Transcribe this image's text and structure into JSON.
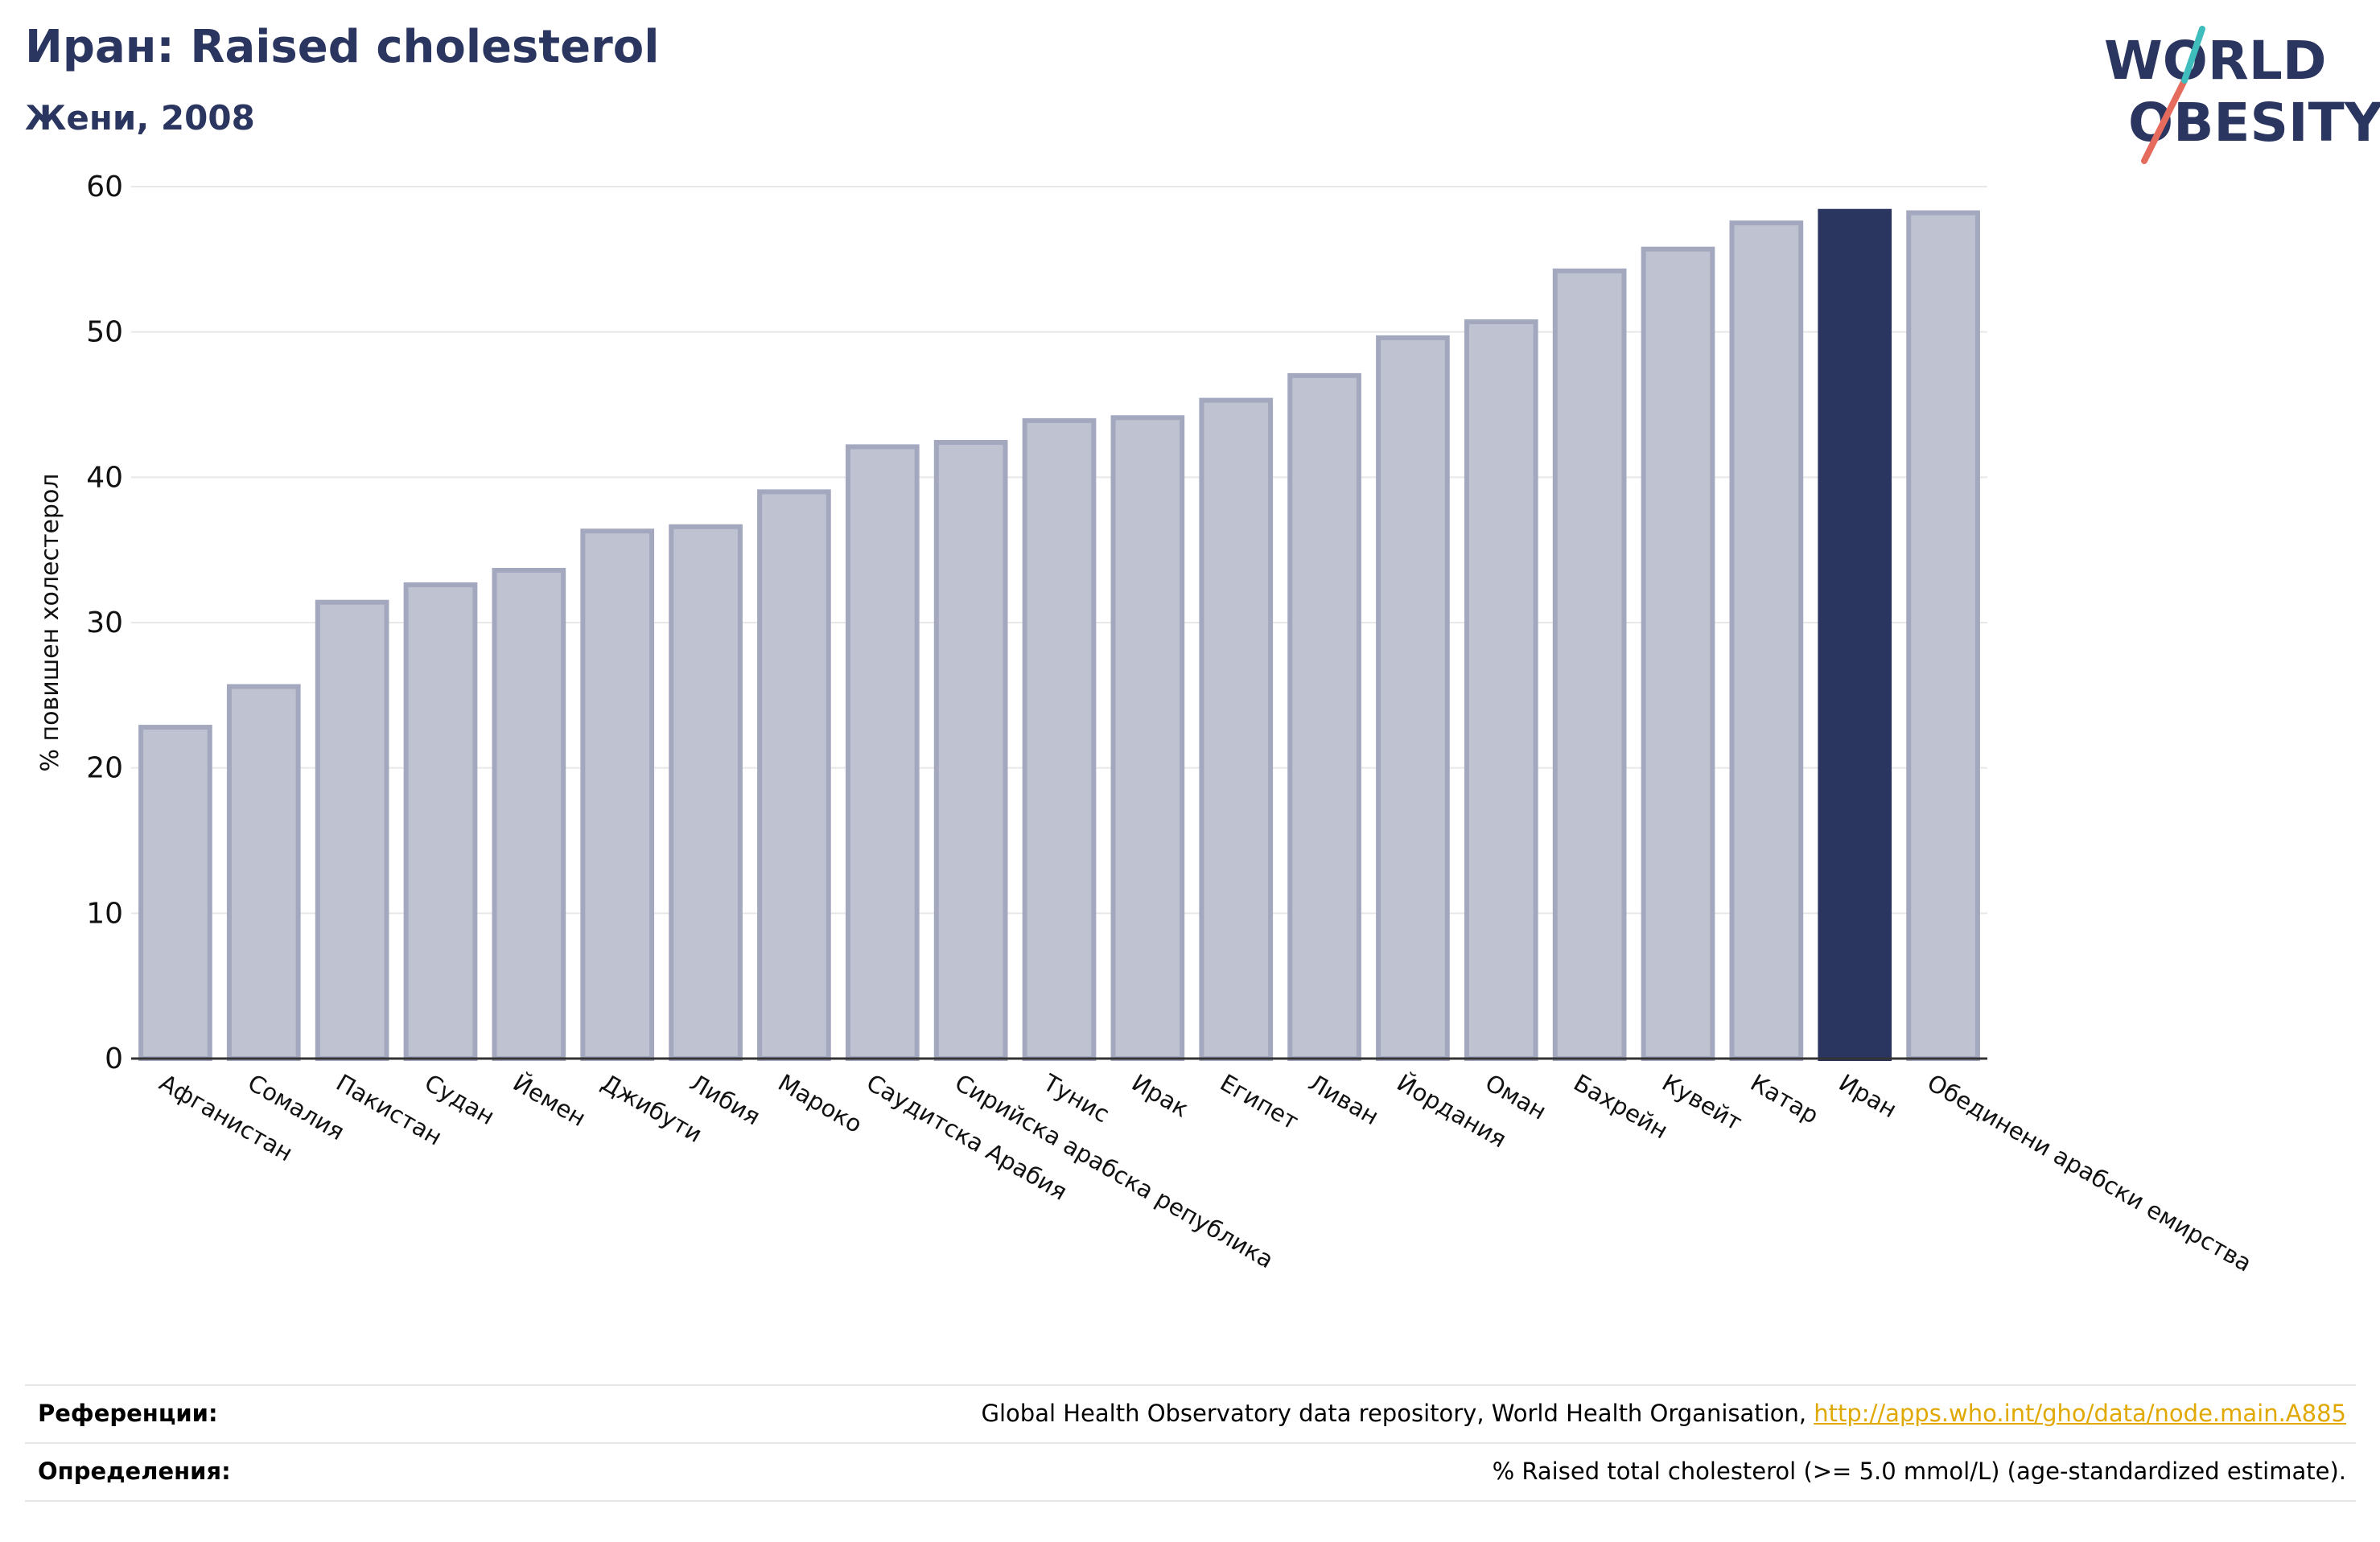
{
  "header": {
    "title": "Иран: Raised cholesterol",
    "subtitle": "Жени, 2008"
  },
  "logo": {
    "line1": "WORLD",
    "line2": "OBESITY",
    "colors": {
      "text": "#2a3560",
      "slash_red": "#e56b5d",
      "slash_teal": "#3fbdbd"
    }
  },
  "chart_data": {
    "type": "bar",
    "title": "",
    "xlabel": "",
    "ylabel": "% повишен холестерол",
    "ylim": [
      0,
      60
    ],
    "yticks": [
      0,
      10,
      20,
      30,
      40,
      50,
      60
    ],
    "grid": true,
    "highlight_category": "Иран",
    "colors": {
      "bar": "#bfc2d0",
      "bar_edge": "#a3a8bf",
      "highlight": "#2a3560",
      "grid": "#e8e8e8",
      "axis": "#333333"
    },
    "categories": [
      "Афганистан",
      "Сомалия",
      "Пакистан",
      "Судан",
      "Йемен",
      "Джибути",
      "Либия",
      "Мароко",
      "Саудитска Арабия",
      "Сирийска арабска република",
      "Тунис",
      "Ирак",
      "Египет",
      "Ливан",
      "Йордания",
      "Оман",
      "Бахрейн",
      "Кувейт",
      "Катар",
      "Иран",
      "Обединени арабски емирства"
    ],
    "values": [
      22.8,
      25.6,
      31.4,
      32.6,
      33.6,
      36.3,
      36.6,
      39.0,
      42.1,
      42.4,
      43.9,
      44.1,
      45.3,
      47.0,
      49.6,
      50.7,
      54.2,
      55.7,
      57.5,
      58.3,
      58.2
    ]
  },
  "footer": {
    "references_label": "Референции:",
    "references_text": "Global Health Observatory data repository, World Health Organisation, ",
    "references_link": "http://apps.who.int/gho/data/node.main.A885",
    "definitions_label": "Определения:",
    "definitions_text": "% Raised total cholesterol (>= 5.0 mmol/L) (age-standardized estimate)."
  }
}
